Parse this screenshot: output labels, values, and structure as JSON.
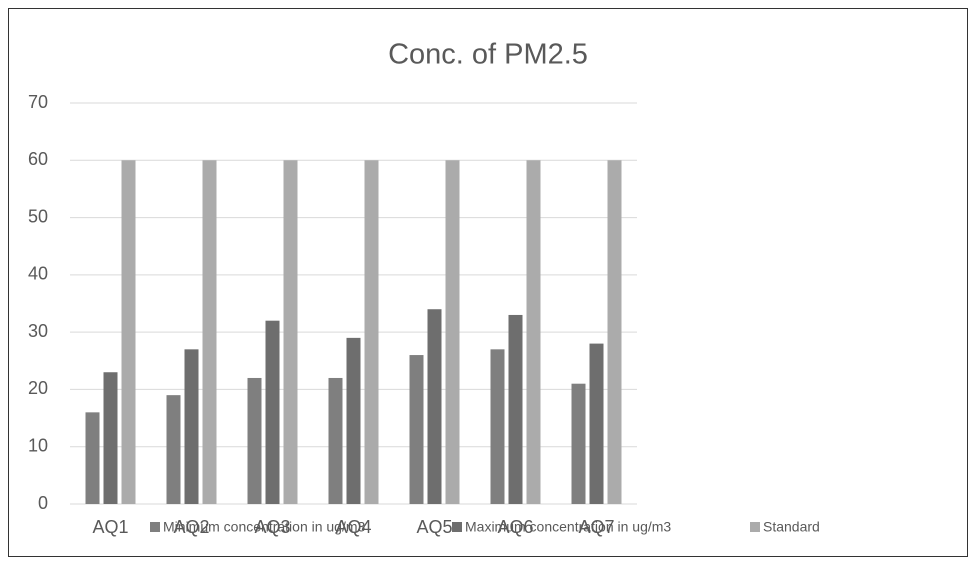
{
  "chart_data": {
    "type": "bar",
    "title": "Conc. of PM2.5",
    "categories": [
      "AQ1",
      "AQ2",
      "AQ3",
      "AQ4",
      "AQ5",
      "AQ6",
      "AQ7"
    ],
    "series": [
      {
        "name": "Minimum concentration in ug/m3",
        "color": "#7f7f7f",
        "values": [
          16,
          19,
          22,
          22,
          26,
          27,
          21
        ]
      },
      {
        "name": "Maximum concentration in ug/m3",
        "color": "#6e6e6e",
        "values": [
          23,
          27,
          32,
          29,
          34,
          33,
          28
        ]
      },
      {
        "name": "Standard",
        "color": "#ababab",
        "values": [
          60,
          60,
          60,
          60,
          60,
          60,
          60
        ]
      }
    ],
    "ylim": [
      0,
      70
    ],
    "yticks": [
      0,
      10,
      20,
      30,
      40,
      50,
      60,
      70
    ],
    "grid": true,
    "legend": "bottom"
  }
}
